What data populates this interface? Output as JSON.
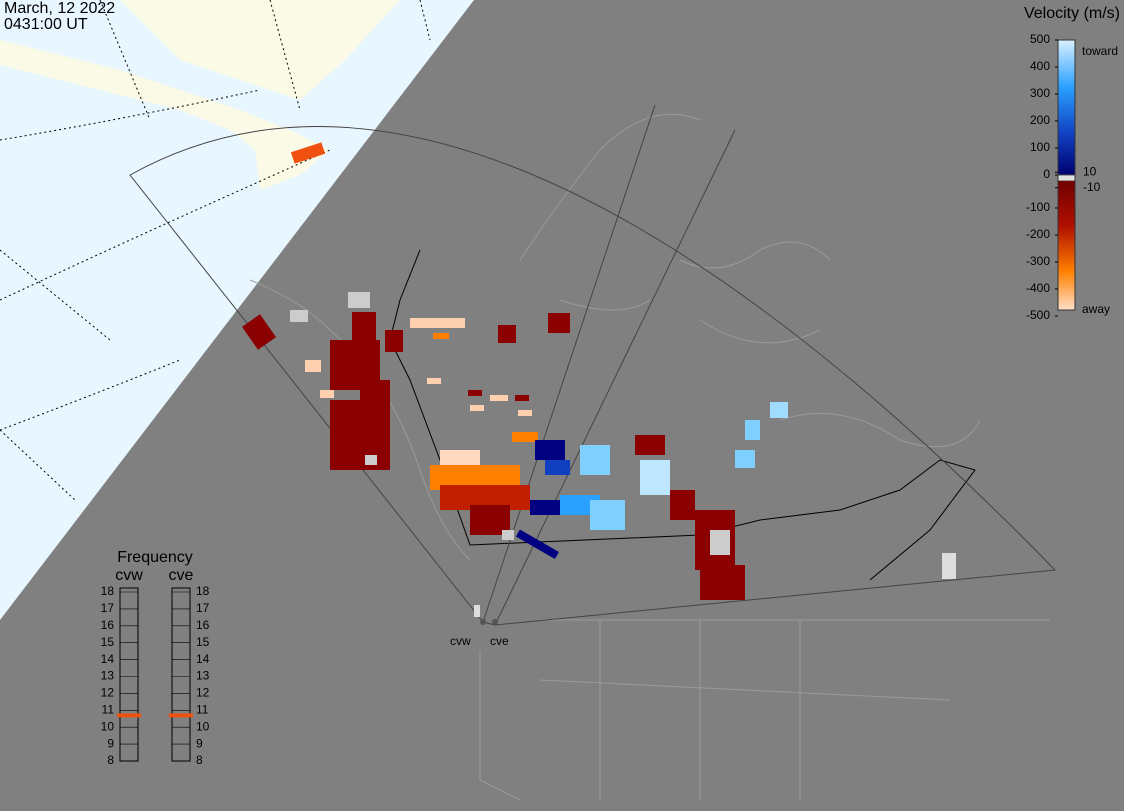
{
  "header": {
    "date": "March, 12 2022",
    "time": "0431:00 UT"
  },
  "colorbar": {
    "title": "Velocity (m/s)",
    "range": [
      -500,
      500
    ],
    "ticks": [
      500,
      400,
      300,
      200,
      100,
      10,
      0,
      -10,
      -100,
      -200,
      -300,
      -400,
      -500
    ],
    "toward": "toward",
    "away": "away"
  },
  "frequency": {
    "title": "Frequency",
    "range": [
      8,
      18
    ],
    "ticks": [
      8,
      9,
      10,
      11,
      12,
      13,
      14,
      15,
      16,
      17,
      18
    ],
    "radars": [
      {
        "name": "cvw",
        "value": 10.7
      },
      {
        "name": "cve",
        "value": 10.7
      }
    ]
  },
  "stations": [
    "cvw",
    "cve"
  ]
}
